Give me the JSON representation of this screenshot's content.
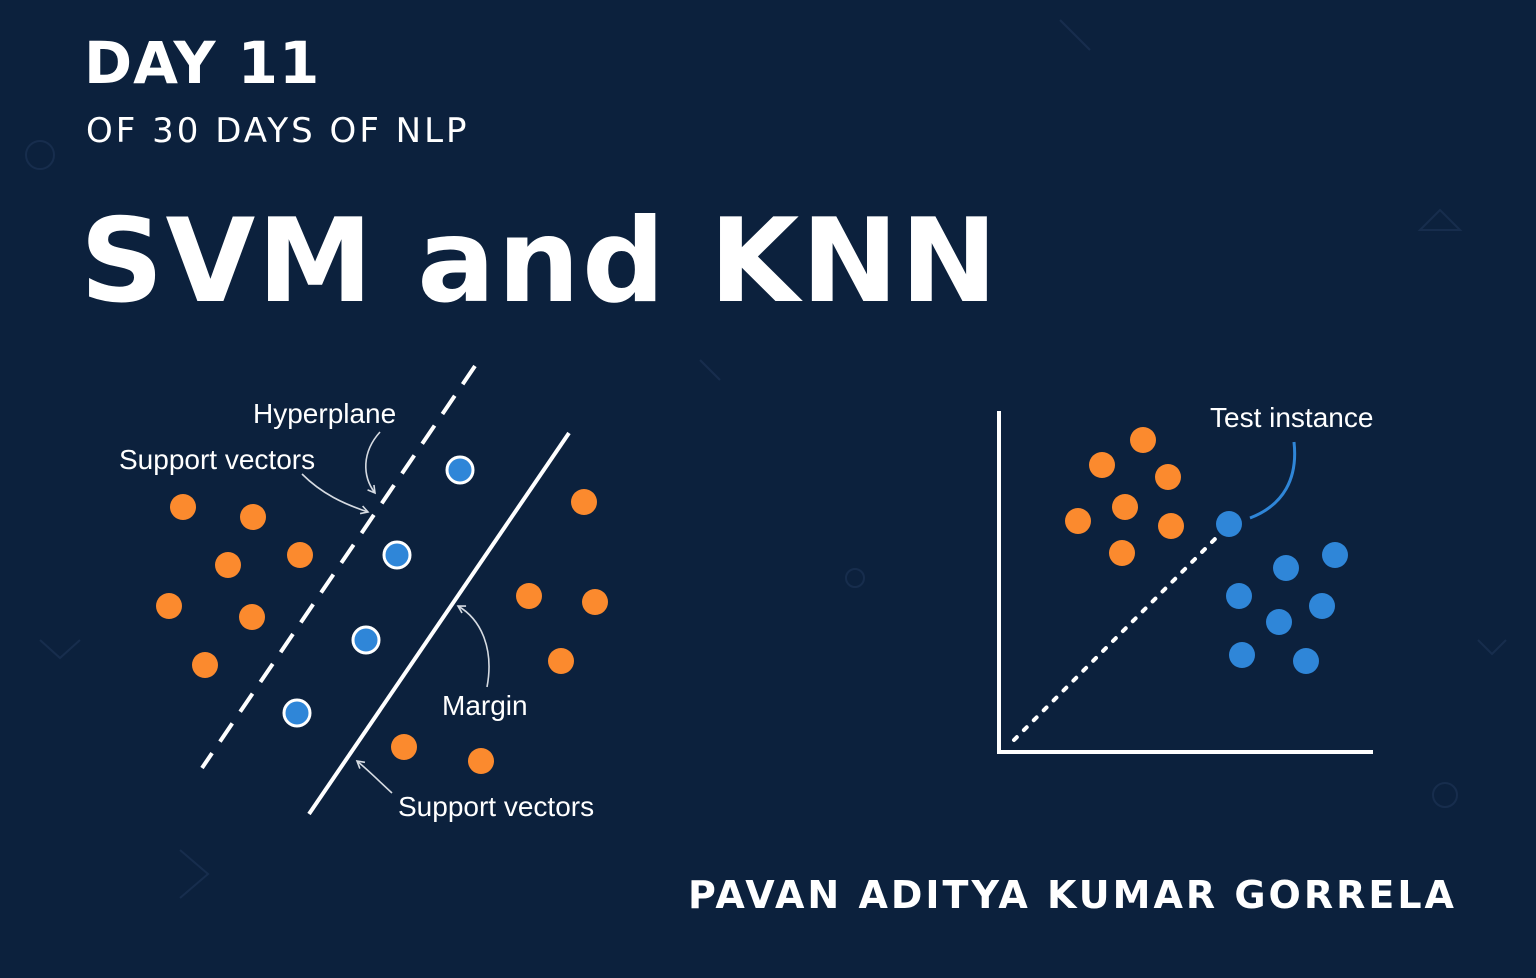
{
  "header": {
    "day": "DAY 11",
    "subtitle": "OF 30 DAYS OF NLP",
    "title": "SVM and KNN"
  },
  "svm": {
    "hyperplane_label": "Hyperplane",
    "support_vectors_top_label": "Support vectors",
    "margin_label": "Margin",
    "support_vectors_bottom_label": "Support vectors"
  },
  "knn": {
    "test_instance_label": "Test instance"
  },
  "footer": {
    "author": "PAVAN ADITYA KUMAR GORRELA"
  },
  "colors": {
    "background": "#0c213d",
    "orange_class": "#fb8a2e",
    "blue_class": "#2f86d8",
    "line": "#ffffff"
  }
}
